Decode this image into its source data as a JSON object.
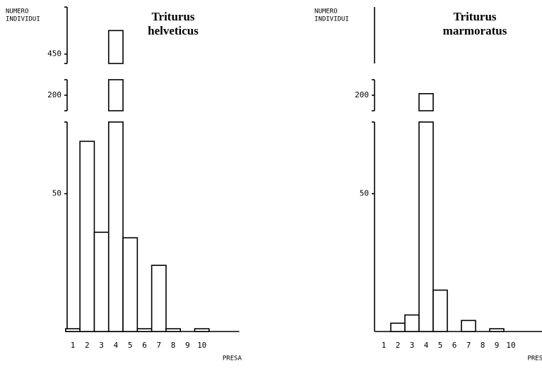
{
  "chart_data": [
    {
      "type": "bar",
      "title": [
        "Triturus",
        "helveticus"
      ],
      "ylabel": [
        "NUMERO",
        "INDIVIDUI"
      ],
      "xlabel": "PRESA",
      "categories": [
        "1",
        "2",
        "3",
        "4",
        "5",
        "6",
        "7",
        "8",
        "9",
        "10"
      ],
      "values": [
        1,
        69,
        36,
        475,
        34,
        1,
        24,
        1,
        null,
        1
      ],
      "color": "#ffffff",
      "ylim": [
        0,
        76
      ],
      "yticks": [
        50
      ],
      "breaks": [
        {
          "ylim": [
            190,
            210
          ],
          "yticks": [
            200
          ]
        },
        {
          "ylim": [
            440,
            500
          ],
          "yticks": [
            450
          ]
        }
      ]
    },
    {
      "type": "bar",
      "title": [
        "Triturus",
        "marmoratus"
      ],
      "ylabel": [
        "NUMERO",
        "INDIVIDUI"
      ],
      "xlabel": "PRESA",
      "categories": [
        "1",
        "2",
        "3",
        "4",
        "5",
        "6",
        "7",
        "8",
        "9",
        "10"
      ],
      "values": [
        null,
        3,
        6,
        201,
        15,
        null,
        4,
        null,
        1,
        null
      ],
      "color": "#ffffff",
      "ylim": [
        0,
        76
      ],
      "yticks": [
        50
      ],
      "breaks": [
        {
          "ylim": [
            190,
            210
          ],
          "yticks": [
            200
          ]
        }
      ]
    }
  ]
}
